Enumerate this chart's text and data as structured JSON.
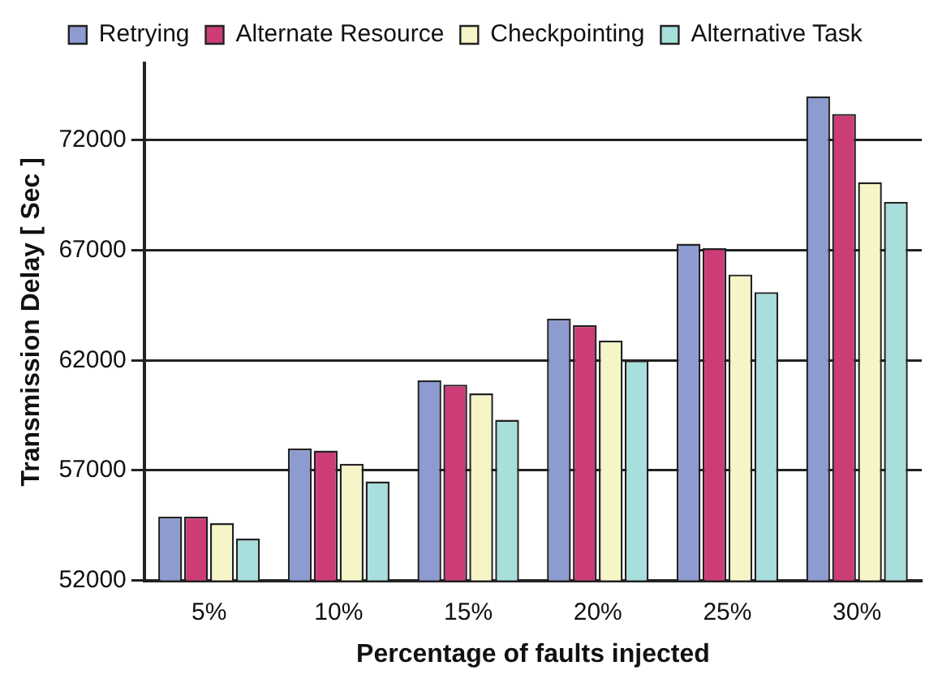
{
  "chart_data": {
    "type": "bar",
    "xlabel": "Percentage of faults injected",
    "ylabel": "Transmission Delay [ Sec ]",
    "categories": [
      "5%",
      "10%",
      "15%",
      "20%",
      "25%",
      "30%"
    ],
    "series": [
      {
        "name": "Retrying",
        "color": "#8e9bd0",
        "values": [
          54900,
          58000,
          61100,
          63900,
          67300,
          74000
        ]
      },
      {
        "name": "Alternate Resource",
        "color": "#cc3d78",
        "values": [
          54900,
          57900,
          60900,
          63600,
          67100,
          73200
        ]
      },
      {
        "name": "Checkpointing",
        "color": "#f5f5c8",
        "values": [
          54600,
          57300,
          60500,
          62900,
          65900,
          70100
        ]
      },
      {
        "name": "Alternative Task",
        "color": "#a8dedb",
        "values": [
          53900,
          56500,
          59300,
          62000,
          65100,
          69200
        ]
      }
    ],
    "ylim": [
      52000,
      75500
    ],
    "yticks": [
      52000,
      57000,
      62000,
      67000,
      72000
    ],
    "grid": "y",
    "legend": "top"
  }
}
